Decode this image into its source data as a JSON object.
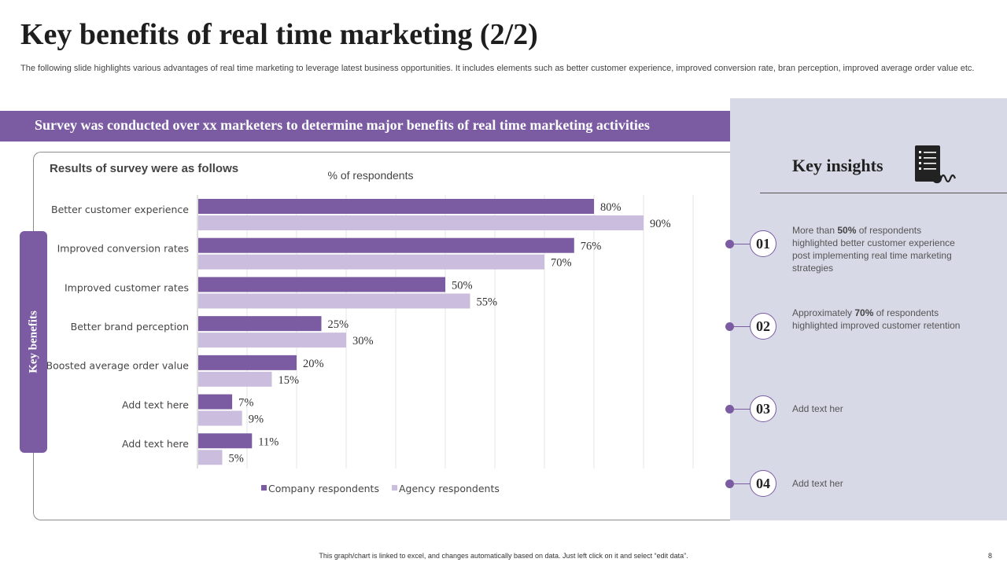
{
  "title": "Key benefits of real time marketing (2/2)",
  "subtitle": "The following slide highlights various advantages of real time marketing to leverage latest business opportunities. It includes elements such as better customer experience, improved conversion rate, bran perception, improved average order value etc.",
  "banner": "Survey was conducted over xx marketers to determine major benefits of  real time marketing activities",
  "side_tab": "Key benefits",
  "chart_data": {
    "type": "bar",
    "orientation": "horizontal",
    "heading": "Results of survey were as follows",
    "title": "% of respondents",
    "categories": [
      "Better customer experience",
      "Improved conversion rates",
      "Improved customer rates",
      "Better brand perception",
      "Boosted average order value",
      "Add text here",
      "Add text here"
    ],
    "series": [
      {
        "name": "Company respondents",
        "values": [
          80,
          76,
          50,
          25,
          20,
          7,
          11
        ],
        "labels": [
          "80%",
          "76%",
          "50%",
          "25%",
          "20%",
          "7%",
          "11%"
        ],
        "color": "#7b5ba2"
      },
      {
        "name": "Agency respondents",
        "values": [
          90,
          70,
          55,
          30,
          15,
          9,
          5
        ],
        "labels": [
          "90%",
          "70%",
          "55%",
          "30%",
          "15%",
          "9%",
          "5%"
        ],
        "color": "#cbbdde"
      }
    ],
    "xlim": [
      0,
      100
    ],
    "grid": true,
    "legend": "bottom"
  },
  "insights": {
    "title": "Key insights",
    "items": [
      {
        "num": "01",
        "pre": "More than ",
        "bold": "50%",
        "post": " of respondents highlighted better customer experience post implementing real time marketing strategies"
      },
      {
        "num": "02",
        "pre": "Approximately ",
        "bold": "70%",
        "post": " of respondents highlighted improved customer retention"
      },
      {
        "num": "03",
        "pre": "Add text her",
        "bold": "",
        "post": ""
      },
      {
        "num": "04",
        "pre": "Add text her",
        "bold": "",
        "post": ""
      }
    ]
  },
  "footer": "This graph/chart is linked to excel, and changes automatically based on data. Just left click on it and select “edit data”.",
  "page_number": "8",
  "colors": {
    "accent": "#7b5ba2",
    "light": "#cbbdde",
    "panel": "#d7d9e6"
  }
}
